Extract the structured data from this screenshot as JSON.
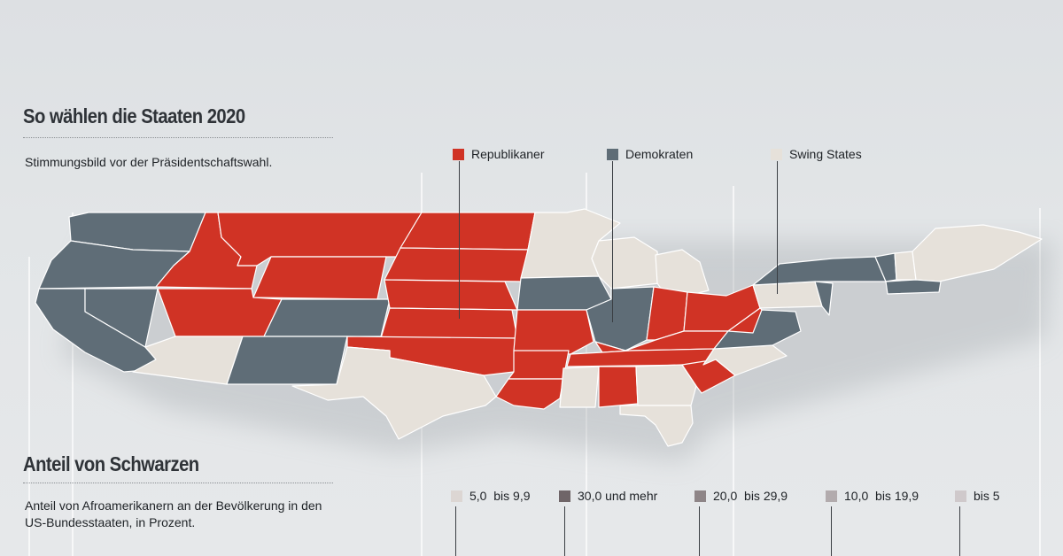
{
  "section1": {
    "title": "So wählen die Staaten 2020",
    "subtitle": "Stimmungsbild vor der Präsidentschaftswahl."
  },
  "legend": [
    {
      "label": "Republikaner",
      "color": "#d03325"
    },
    {
      "label": "Demokraten",
      "color": "#5f6d77"
    },
    {
      "label": "Swing States",
      "color": "#e6e1da"
    }
  ],
  "section2": {
    "title": "Anteil von Schwarzen",
    "subtitle_line1": "Anteil von Afroamerikanern an der Bevölkerung in den",
    "subtitle_line2": "US-Bundesstaaten, in Prozent."
  },
  "legend2": [
    {
      "label": "5,0  bis 9,9",
      "color": "#dcd6d3"
    },
    {
      "label": "30,0 und mehr",
      "color": "#6f6568"
    },
    {
      "label": "20,0  bis 29,9",
      "color": "#8e8587"
    },
    {
      "label": "10,0  bis 19,9",
      "color": "#b2abad"
    },
    {
      "label": "bis 5",
      "color": "#cfc9cb"
    }
  ],
  "colors": {
    "republican": "#d03325",
    "democrat": "#5f6d77",
    "swing": "#e6e1da"
  }
}
